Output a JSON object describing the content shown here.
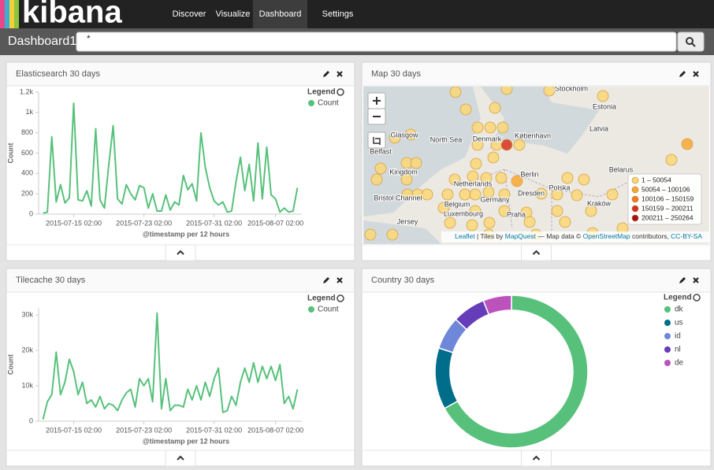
{
  "nav": {
    "logo": "kibana",
    "items": [
      "Discover",
      "Visualize",
      "Dashboard",
      "Settings"
    ],
    "active": 2
  },
  "dashboard_title": "Dashboard1",
  "search_query": "*",
  "chart_data": [
    {
      "type": "line",
      "title": "Elasticsearch 30 days",
      "x_label": "@timestamp per 12 hours",
      "y_label": "Count",
      "legend_title": "Legend",
      "x": [
        "2015-07-11 14:00",
        "2015-07-12 02:00",
        "2015-07-12 14:00",
        "2015-07-13 02:00",
        "2015-07-13 14:00",
        "2015-07-14 02:00",
        "2015-07-14 14:00",
        "2015-07-15 02:00",
        "2015-07-15 14:00",
        "2015-07-16 02:00",
        "2015-07-16 14:00",
        "2015-07-17 02:00",
        "2015-07-17 14:00",
        "2015-07-18 02:00",
        "2015-07-18 14:00",
        "2015-07-19 02:00",
        "2015-07-19 14:00",
        "2015-07-20 02:00",
        "2015-07-20 14:00",
        "2015-07-21 02:00",
        "2015-07-21 14:00",
        "2015-07-22 02:00",
        "2015-07-22 14:00",
        "2015-07-23 02:00",
        "2015-07-23 14:00",
        "2015-07-24 02:00",
        "2015-07-24 14:00",
        "2015-07-25 02:00",
        "2015-07-25 14:00",
        "2015-07-26 02:00",
        "2015-07-26 14:00",
        "2015-07-27 02:00",
        "2015-07-27 14:00",
        "2015-07-28 02:00",
        "2015-07-28 14:00",
        "2015-07-29 02:00",
        "2015-07-29 14:00",
        "2015-07-30 02:00",
        "2015-07-30 14:00",
        "2015-07-31 02:00",
        "2015-07-31 14:00",
        "2015-08-01 02:00",
        "2015-08-01 14:00",
        "2015-08-02 02:00",
        "2015-08-02 14:00",
        "2015-08-03 02:00",
        "2015-08-03 14:00",
        "2015-08-04 02:00",
        "2015-08-04 14:00",
        "2015-08-05 02:00",
        "2015-08-05 14:00",
        "2015-08-06 02:00",
        "2015-08-06 14:00",
        "2015-08-07 02:00",
        "2015-08-07 14:00",
        "2015-08-08 02:00",
        "2015-08-08 14:00",
        "2015-08-09 02:00",
        "2015-08-09 14:00"
      ],
      "series": [
        {
          "name": "Count",
          "color": "#57c17b",
          "values": [
            10,
            20,
            760,
            120,
            290,
            110,
            160,
            1090,
            140,
            130,
            230,
            80,
            840,
            140,
            60,
            490,
            870,
            150,
            100,
            290,
            200,
            140,
            280,
            260,
            60,
            200,
            30,
            30,
            190,
            40,
            120,
            90,
            380,
            240,
            300,
            130,
            800,
            460,
            260,
            130,
            90,
            120,
            20,
            30,
            320,
            560,
            230,
            490,
            130,
            700,
            150,
            660,
            190,
            150,
            20,
            60,
            20,
            30,
            260
          ]
        }
      ],
      "xlim": [
        "2015-07-11 02:00",
        "2015-08-10 02:00"
      ],
      "xticks": [
        "2015-07-15 02:00",
        "2015-07-23 02:00",
        "2015-07-31 02:00",
        "2015-08-07 02:00"
      ],
      "ylim": [
        0,
        1200
      ],
      "yticks": [
        0,
        200,
        400,
        600,
        800,
        {
          "value": 1000,
          "label": "1k"
        },
        {
          "value": 1200,
          "label": "1.2k"
        }
      ]
    },
    {
      "type": "line",
      "title": "Tilecache 30 days",
      "x_label": "@timestamp per 12 hours",
      "y_label": "Count",
      "legend_title": "Legend",
      "x": [
        "2015-07-11 14:00",
        "2015-07-12 02:00",
        "2015-07-12 14:00",
        "2015-07-13 02:00",
        "2015-07-13 14:00",
        "2015-07-14 02:00",
        "2015-07-14 14:00",
        "2015-07-15 02:00",
        "2015-07-15 14:00",
        "2015-07-16 02:00",
        "2015-07-16 14:00",
        "2015-07-17 02:00",
        "2015-07-17 14:00",
        "2015-07-18 02:00",
        "2015-07-18 14:00",
        "2015-07-19 02:00",
        "2015-07-19 14:00",
        "2015-07-20 02:00",
        "2015-07-20 14:00",
        "2015-07-21 02:00",
        "2015-07-21 14:00",
        "2015-07-22 02:00",
        "2015-07-22 14:00",
        "2015-07-23 02:00",
        "2015-07-23 14:00",
        "2015-07-24 02:00",
        "2015-07-24 14:00",
        "2015-07-25 02:00",
        "2015-07-25 14:00",
        "2015-07-26 02:00",
        "2015-07-26 14:00",
        "2015-07-27 02:00",
        "2015-07-27 14:00",
        "2015-07-28 02:00",
        "2015-07-28 14:00",
        "2015-07-29 02:00",
        "2015-07-29 14:00",
        "2015-07-30 02:00",
        "2015-07-30 14:00",
        "2015-07-31 02:00",
        "2015-07-31 14:00",
        "2015-08-01 02:00",
        "2015-08-01 14:00",
        "2015-08-02 02:00",
        "2015-08-02 14:00",
        "2015-08-03 02:00",
        "2015-08-03 14:00",
        "2015-08-04 02:00",
        "2015-08-04 14:00",
        "2015-08-05 02:00",
        "2015-08-05 14:00",
        "2015-08-06 02:00",
        "2015-08-06 14:00",
        "2015-08-07 02:00",
        "2015-08-07 14:00",
        "2015-08-08 02:00",
        "2015-08-08 14:00",
        "2015-08-09 02:00",
        "2015-08-09 14:00"
      ],
      "series": [
        {
          "name": "Count",
          "color": "#57c17b",
          "values": [
            500,
            5500,
            7500,
            19500,
            7500,
            11000,
            17500,
            14000,
            7500,
            11000,
            5000,
            6000,
            4000,
            7000,
            3500,
            5000,
            4500,
            3000,
            6000,
            8000,
            9000,
            4000,
            12000,
            10000,
            12000,
            5500,
            30500,
            3500,
            12000,
            3000,
            4500,
            4500,
            4000,
            9000,
            6000,
            10000,
            6000,
            11000,
            7000,
            12000,
            15000,
            2500,
            3000,
            7000,
            4500,
            11000,
            15000,
            11000,
            16500,
            11000,
            15500,
            12000,
            15500,
            11500,
            16000,
            5000,
            7000,
            3500,
            9000
          ]
        }
      ],
      "xlim": [
        "2015-07-11 02:00",
        "2015-08-10 02:00"
      ],
      "xticks": [
        "2015-07-15 02:00",
        "2015-07-23 02:00",
        "2015-07-31 02:00",
        "2015-08-07 02:00"
      ],
      "ylim": [
        0,
        32000
      ],
      "yticks": [
        0,
        {
          "value": 10000,
          "label": "10k"
        },
        {
          "value": 20000,
          "label": "20k"
        },
        {
          "value": 30000,
          "label": "30k"
        }
      ]
    },
    {
      "type": "pie",
      "title": "Country 30 days",
      "donut": true,
      "legend_title": "Legend",
      "categories": [
        "dk",
        "us",
        "id",
        "nl",
        "de"
      ],
      "values": [
        67,
        13,
        7,
        7,
        6
      ],
      "colors": [
        "#57c17b",
        "#006e8a",
        "#6f87d8",
        "#663db8",
        "#bc52bc"
      ]
    }
  ],
  "map": {
    "title": "Map 30 days",
    "labels": [
      "Stockholm",
      "Estonia",
      "Latvia",
      "Glasgow",
      "North Sea",
      "Denmark",
      "København",
      "Belfast",
      "Kingdom",
      "Berlin",
      "Belarus",
      "Netherlands",
      "Polska",
      "Bristol Channel",
      "Dresden",
      "Germany",
      "Belgium",
      "Kraków",
      "Luxembourg",
      "Praha",
      "Jersey"
    ],
    "legend": [
      {
        "label": "1 – 50054",
        "color": "#fcd777"
      },
      {
        "label": "50054 – 100106",
        "color": "#f9a832"
      },
      {
        "label": "100106 – 150159",
        "color": "#f47b20"
      },
      {
        "label": "150159 – 200211",
        "color": "#d7301f"
      },
      {
        "label": "200211 – 250264",
        "color": "#a50f15"
      }
    ],
    "attribution": [
      "Leaflet",
      " | Tiles by ",
      "MapQuest",
      " — Map data © ",
      "OpenStreetMap",
      " contributors, ",
      "CC-BY-SA"
    ]
  }
}
